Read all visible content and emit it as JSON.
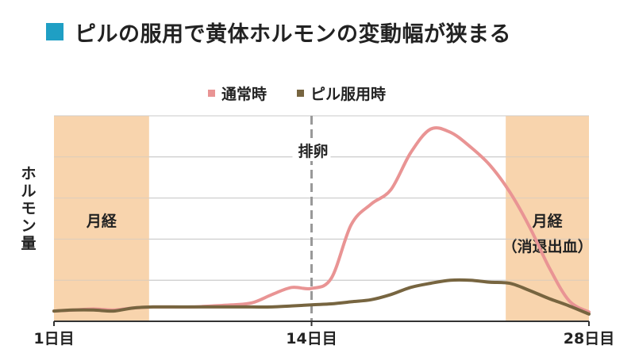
{
  "title": "ピルの服用で黄体ホルモンの変動幅が狭まる",
  "colors": {
    "title_marker": "#1f9fc4",
    "normal": "#e99494",
    "pill": "#776540",
    "menses_band": "#f8d4ad",
    "grid": "#c8c8c8",
    "ovulation_line": "#999999",
    "axis": "#333333"
  },
  "chart_data": {
    "type": "line",
    "title": "ピルの服用で黄体ホルモンの変動幅が狭まる",
    "xlabel": "",
    "ylabel": "ホルモン量",
    "xlim": [
      1,
      28
    ],
    "ylim": [
      0,
      10
    ],
    "grid": true,
    "legend": "top-center",
    "x_ticks": [
      {
        "x": 1,
        "label": "1日目"
      },
      {
        "x": 14,
        "label": "14日目"
      },
      {
        "x": 28,
        "label": "28日目"
      }
    ],
    "annotations": [
      {
        "type": "band",
        "x0": 1,
        "x1": 5.8,
        "label": "月経"
      },
      {
        "type": "band",
        "x0": 23.8,
        "x1": 28.5,
        "label": "月経",
        "label2": "（消退出血）"
      },
      {
        "type": "vline",
        "x": 14,
        "label": "排卵"
      }
    ],
    "series": [
      {
        "name": "通常時",
        "x": [
          1,
          2,
          3,
          4,
          5,
          6,
          7,
          8,
          9,
          10,
          11,
          12,
          13,
          14,
          15,
          16,
          17,
          18,
          19,
          20,
          21,
          22,
          23,
          24,
          25,
          26,
          27,
          28
        ],
        "y": [
          0.5,
          0.55,
          0.6,
          0.55,
          0.65,
          0.7,
          0.7,
          0.7,
          0.75,
          0.8,
          0.9,
          1.3,
          1.65,
          1.6,
          2.1,
          4.7,
          5.7,
          6.4,
          8.2,
          9.35,
          9.2,
          8.5,
          7.6,
          6.3,
          4.6,
          2.6,
          1.0,
          0.45
        ]
      },
      {
        "name": "ピル服用時",
        "x": [
          1,
          2,
          3,
          4,
          5,
          6,
          7,
          8,
          9,
          10,
          11,
          12,
          13,
          14,
          15,
          16,
          17,
          18,
          19,
          20,
          21,
          22,
          23,
          24,
          25,
          26,
          27,
          28
        ],
        "y": [
          0.5,
          0.55,
          0.55,
          0.5,
          0.65,
          0.7,
          0.7,
          0.7,
          0.7,
          0.7,
          0.7,
          0.7,
          0.75,
          0.8,
          0.85,
          0.95,
          1.05,
          1.3,
          1.65,
          1.85,
          2.0,
          2.0,
          1.9,
          1.85,
          1.5,
          1.1,
          0.75,
          0.35
        ]
      }
    ]
  }
}
